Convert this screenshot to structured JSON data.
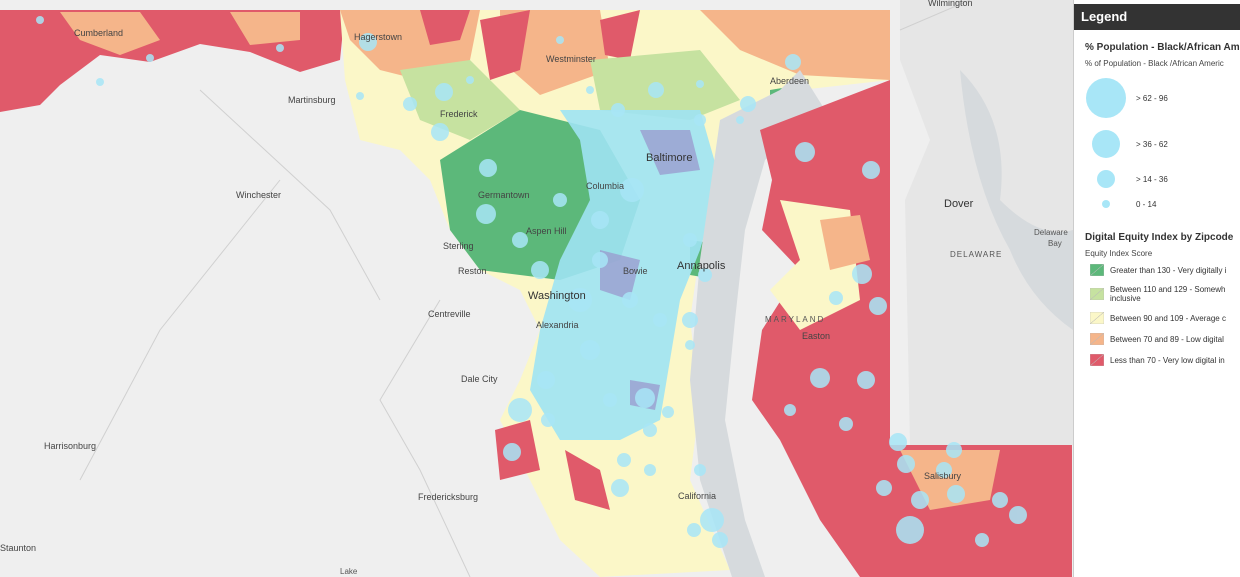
{
  "map": {
    "places": [
      "Wilmington",
      "Cumberland",
      "Hagerstown",
      "Westminster",
      "Aberdeen",
      "Martinsburg",
      "Frederick",
      "Baltimore",
      "Winchester",
      "Germantown",
      "Columbia",
      "Aspen Hill",
      "Sterling",
      "Reston",
      "Washington",
      "Annapolis",
      "Bowie",
      "Centreville",
      "Alexandria",
      "Dale City",
      "Harrisonburg",
      "Fredericksburg",
      "Staunton",
      "Easton",
      "MARYLAND",
      "Salisbury",
      "California",
      "Dover",
      "Delaware",
      "Bay",
      "DELAWARE",
      "Lake"
    ]
  },
  "legend": {
    "title": "Legend",
    "population_layer": {
      "title": "% Population - Black/African Ame",
      "field": "% of Population - Black /African Americ",
      "classes": [
        "> 62 - 96",
        "> 36 - 62",
        "> 14 - 36",
        "0 - 14"
      ]
    },
    "equity_layer": {
      "title": "Digital Equity Index by Zipcode",
      "field": "Equity Index Score",
      "classes": [
        [
          "Greater than 130 - Very digitally i"
        ],
        [
          "Between 110 and 129 - Somewh",
          "inclusive"
        ],
        [
          "Between 90 and 109 - Average c"
        ],
        [
          "Between 70 and 89 - Low digital"
        ],
        [
          "Less than 70 - Very low digital in"
        ]
      ]
    }
  }
}
